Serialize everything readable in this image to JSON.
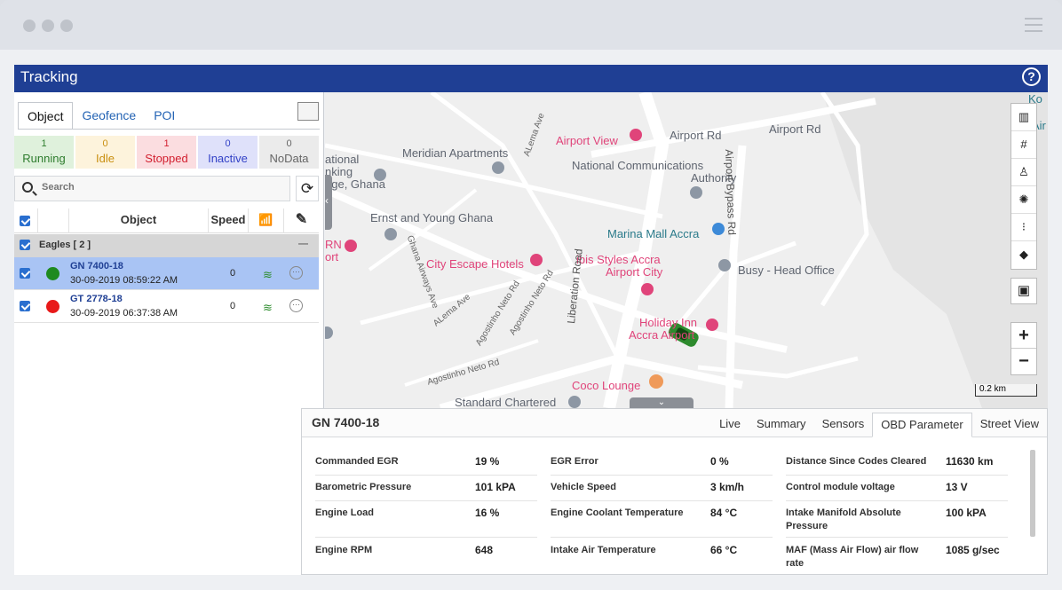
{
  "app": {
    "title": "Tracking",
    "help_label": "?"
  },
  "left_tabs": [
    {
      "label": "Object"
    },
    {
      "label": "Geofence"
    },
    {
      "label": "POI"
    }
  ],
  "status": [
    {
      "count": "1",
      "label": "Running"
    },
    {
      "count": "0",
      "label": "Idle"
    },
    {
      "count": "1",
      "label": "Stopped"
    },
    {
      "count": "0",
      "label": "Inactive"
    },
    {
      "count": "0",
      "label": "NoData"
    }
  ],
  "search": {
    "placeholder": "Search",
    "refresh": "⟳"
  },
  "grid": {
    "col_object": "Object",
    "col_speed": "Speed"
  },
  "group": {
    "label": "Eagles [ 2 ]",
    "collapse": "—"
  },
  "objects": [
    {
      "name": "GN 7400-18",
      "time": "30-09-2019 08:59:22 AM",
      "speed": "0",
      "status_color": "#1e8a1e"
    },
    {
      "name": "GT 2778-18",
      "time": "30-09-2019 06:37:38 AM",
      "speed": "0",
      "status_color": "#e81919"
    }
  ],
  "map": {
    "labels": {
      "airport_view": "Airport View",
      "airport_rd": "Airport Rd",
      "airport_rd2": "Airport Rd",
      "meridian": "Meridian Apartments",
      "ncauth": "National Communications",
      "ncauth2": "Authority",
      "national": "ational",
      "nking": "nking",
      "ege": "ege, Ghana",
      "ernst": "Ernst and Young Ghana",
      "marina": "Marina Mall Accra",
      "busy": "Busy - Head Office",
      "city_escape": "City Escape Hotels",
      "ibis": "ibis Styles Accra",
      "ibis2": "Airport City",
      "rn": "RN",
      "ort": "ort",
      "holiday": "Holiday Inn",
      "holiday2": "Accra Airport",
      "coco": "Coco Lounge",
      "standard": "Standard Chartered",
      "liberation": "Liberation Road",
      "airport_bypass": "Airport Bypass Rd",
      "alema1": "ALema Ave",
      "alema2": "ALema Ave",
      "ghana_airways": "Ghana Airways Ave",
      "agostinho1": "Agostinho Neto Rd",
      "agostinho2": "Agostinho Neto Rd",
      "agostinho3": "Agostinho Neto Rd",
      "ko": "Ko",
      "air": "Air"
    },
    "zoom_in": "+",
    "zoom_out": "−",
    "scale": "0.2 km"
  },
  "info": {
    "title": "GN 7400-18",
    "tabs": [
      {
        "label": "Live"
      },
      {
        "label": "Summary"
      },
      {
        "label": "Sensors"
      },
      {
        "label": "OBD Parameter"
      },
      {
        "label": "Street View"
      }
    ],
    "obd": [
      [
        {
          "label": "Commanded EGR",
          "value": "19 %"
        },
        {
          "label": "EGR Error",
          "value": "0 %"
        },
        {
          "label": "Distance Since Codes Cleared",
          "value": "11630 km"
        }
      ],
      [
        {
          "label": "Barometric Pressure",
          "value": "101 kPA"
        },
        {
          "label": "Vehicle Speed",
          "value": "3 km/h"
        },
        {
          "label": "Control module voltage",
          "value": "13 V"
        }
      ],
      [
        {
          "label": "Engine Load",
          "value": "16 %"
        },
        {
          "label": "Engine Coolant Temperature",
          "value": "84 °C"
        },
        {
          "label": "Intake Manifold Absolute Pressure",
          "value": "100 kPA"
        }
      ],
      [
        {
          "label": "Engine RPM",
          "value": "648"
        },
        {
          "label": "Intake Air Temperature",
          "value": "66 °C"
        },
        {
          "label": "MAF (Mass Air Flow) air flow rate",
          "value": "1085 g/sec"
        }
      ]
    ]
  }
}
